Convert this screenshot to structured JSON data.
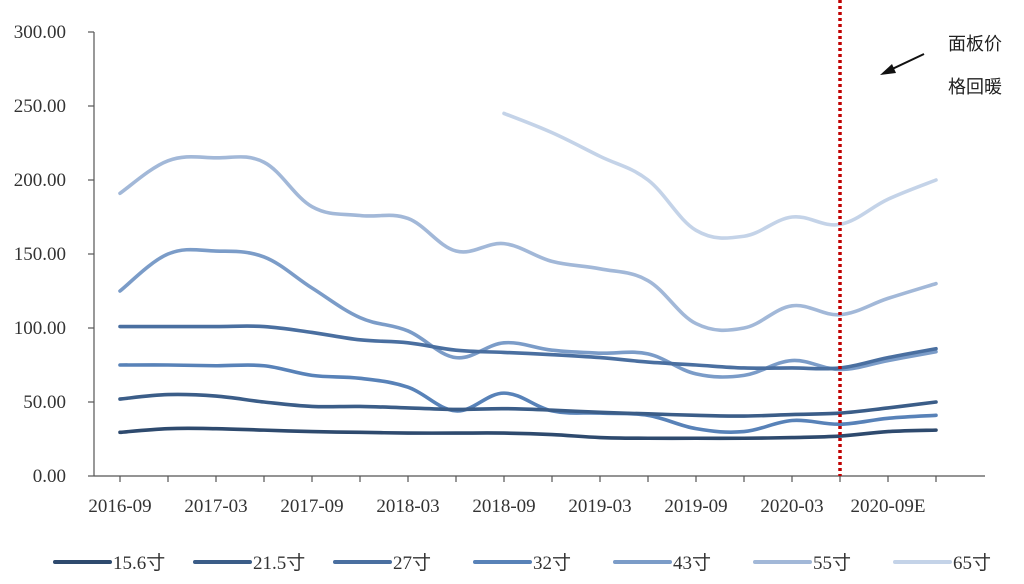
{
  "chart_data": {
    "type": "line",
    "title": "",
    "xlabel": "",
    "ylabel": "",
    "x_ticks": [
      "2016-09",
      "2017-03",
      "2017-09",
      "2018-03",
      "2018-09",
      "2019-03",
      "2019-09",
      "2020-03",
      "2020-09E"
    ],
    "y_ticks": [
      "0.00",
      "50.00",
      "100.00",
      "150.00",
      "200.00",
      "250.00",
      "300.00"
    ],
    "ylim": [
      0,
      300
    ],
    "grid": false,
    "legend_position": "bottom",
    "reference_line": {
      "position": 7.5,
      "style": "dotted",
      "color": "#c00000"
    },
    "annotation": {
      "lines": [
        "面板价",
        "格回暖"
      ]
    },
    "series": [
      {
        "name": "15.6寸",
        "color": "#2e4a6e",
        "values": [
          [
            0,
            29.5
          ],
          [
            0.5,
            32
          ],
          [
            1,
            32
          ],
          [
            1.5,
            31
          ],
          [
            2,
            30
          ],
          [
            2.5,
            29.5
          ],
          [
            3,
            29
          ],
          [
            3.5,
            29
          ],
          [
            4,
            29
          ],
          [
            4.5,
            28
          ],
          [
            5,
            26
          ],
          [
            5.5,
            25.5
          ],
          [
            6,
            25.5
          ],
          [
            6.5,
            25.5
          ],
          [
            7,
            26
          ],
          [
            7.5,
            27
          ],
          [
            8,
            30
          ],
          [
            8.5,
            31
          ]
        ]
      },
      {
        "name": "21.5寸",
        "color": "#3b5d88",
        "values": [
          [
            0,
            52
          ],
          [
            0.5,
            55
          ],
          [
            1,
            54
          ],
          [
            1.5,
            50
          ],
          [
            2,
            47
          ],
          [
            2.5,
            47
          ],
          [
            3,
            46
          ],
          [
            3.5,
            45
          ],
          [
            4,
            45.5
          ],
          [
            4.5,
            44.5
          ],
          [
            5,
            43
          ],
          [
            5.5,
            42
          ],
          [
            6,
            41
          ],
          [
            6.5,
            40.5
          ],
          [
            7,
            41.5
          ],
          [
            7.5,
            42.5
          ],
          [
            8,
            46
          ],
          [
            8.5,
            50
          ]
        ]
      },
      {
        "name": "27寸",
        "color": "#4a6fa0",
        "values": [
          [
            0,
            101
          ],
          [
            0.5,
            101
          ],
          [
            1,
            101
          ],
          [
            1.5,
            101
          ],
          [
            2,
            97
          ],
          [
            2.5,
            92
          ],
          [
            3,
            90
          ],
          [
            3.5,
            85
          ],
          [
            4,
            83.5
          ],
          [
            4.5,
            82
          ],
          [
            5,
            80
          ],
          [
            5.5,
            77
          ],
          [
            6,
            75
          ],
          [
            6.5,
            73
          ],
          [
            7,
            73
          ],
          [
            7.5,
            73
          ],
          [
            8,
            80
          ],
          [
            8.5,
            86
          ]
        ]
      },
      {
        "name": "32寸",
        "color": "#5882b8",
        "values": [
          [
            0,
            75
          ],
          [
            0.5,
            75
          ],
          [
            1,
            74.5
          ],
          [
            1.5,
            74.5
          ],
          [
            2,
            68
          ],
          [
            2.5,
            66
          ],
          [
            3,
            60
          ],
          [
            3.5,
            44
          ],
          [
            4,
            56
          ],
          [
            4.5,
            44
          ],
          [
            5,
            42.5
          ],
          [
            5.5,
            41
          ],
          [
            6,
            32
          ],
          [
            6.5,
            30
          ],
          [
            7,
            37.5
          ],
          [
            7.5,
            35
          ],
          [
            8,
            39
          ],
          [
            8.5,
            41
          ]
        ]
      },
      {
        "name": "43寸",
        "color": "#7b9cc8",
        "values": [
          [
            0,
            125
          ],
          [
            0.5,
            150
          ],
          [
            1,
            152
          ],
          [
            1.5,
            148
          ],
          [
            2,
            127
          ],
          [
            2.5,
            107
          ],
          [
            3,
            98
          ],
          [
            3.5,
            80
          ],
          [
            4,
            90
          ],
          [
            4.5,
            85
          ],
          [
            5,
            83
          ],
          [
            5.5,
            82.5
          ],
          [
            6,
            69
          ],
          [
            6.5,
            68
          ],
          [
            7,
            78
          ],
          [
            7.5,
            72
          ],
          [
            8,
            78
          ],
          [
            8.5,
            84
          ]
        ]
      },
      {
        "name": "55寸",
        "color": "#a2b8d8",
        "values": [
          [
            0,
            191
          ],
          [
            0.5,
            213
          ],
          [
            1,
            215
          ],
          [
            1.5,
            212
          ],
          [
            2,
            182
          ],
          [
            2.5,
            176
          ],
          [
            3,
            174
          ],
          [
            3.5,
            152
          ],
          [
            4,
            157
          ],
          [
            4.5,
            145
          ],
          [
            5,
            140
          ],
          [
            5.5,
            132
          ],
          [
            6,
            103
          ],
          [
            6.5,
            100
          ],
          [
            7,
            115
          ],
          [
            7.5,
            109
          ],
          [
            8,
            120
          ],
          [
            8.5,
            130
          ]
        ]
      },
      {
        "name": "65寸",
        "color": "#c4d3e8",
        "values": [
          [
            4,
            245
          ],
          [
            4.5,
            232
          ],
          [
            5,
            216
          ],
          [
            5.5,
            200
          ],
          [
            6,
            166
          ],
          [
            6.5,
            162
          ],
          [
            7,
            175
          ],
          [
            7.5,
            170
          ],
          [
            8,
            187
          ],
          [
            8.5,
            200
          ]
        ]
      }
    ]
  }
}
